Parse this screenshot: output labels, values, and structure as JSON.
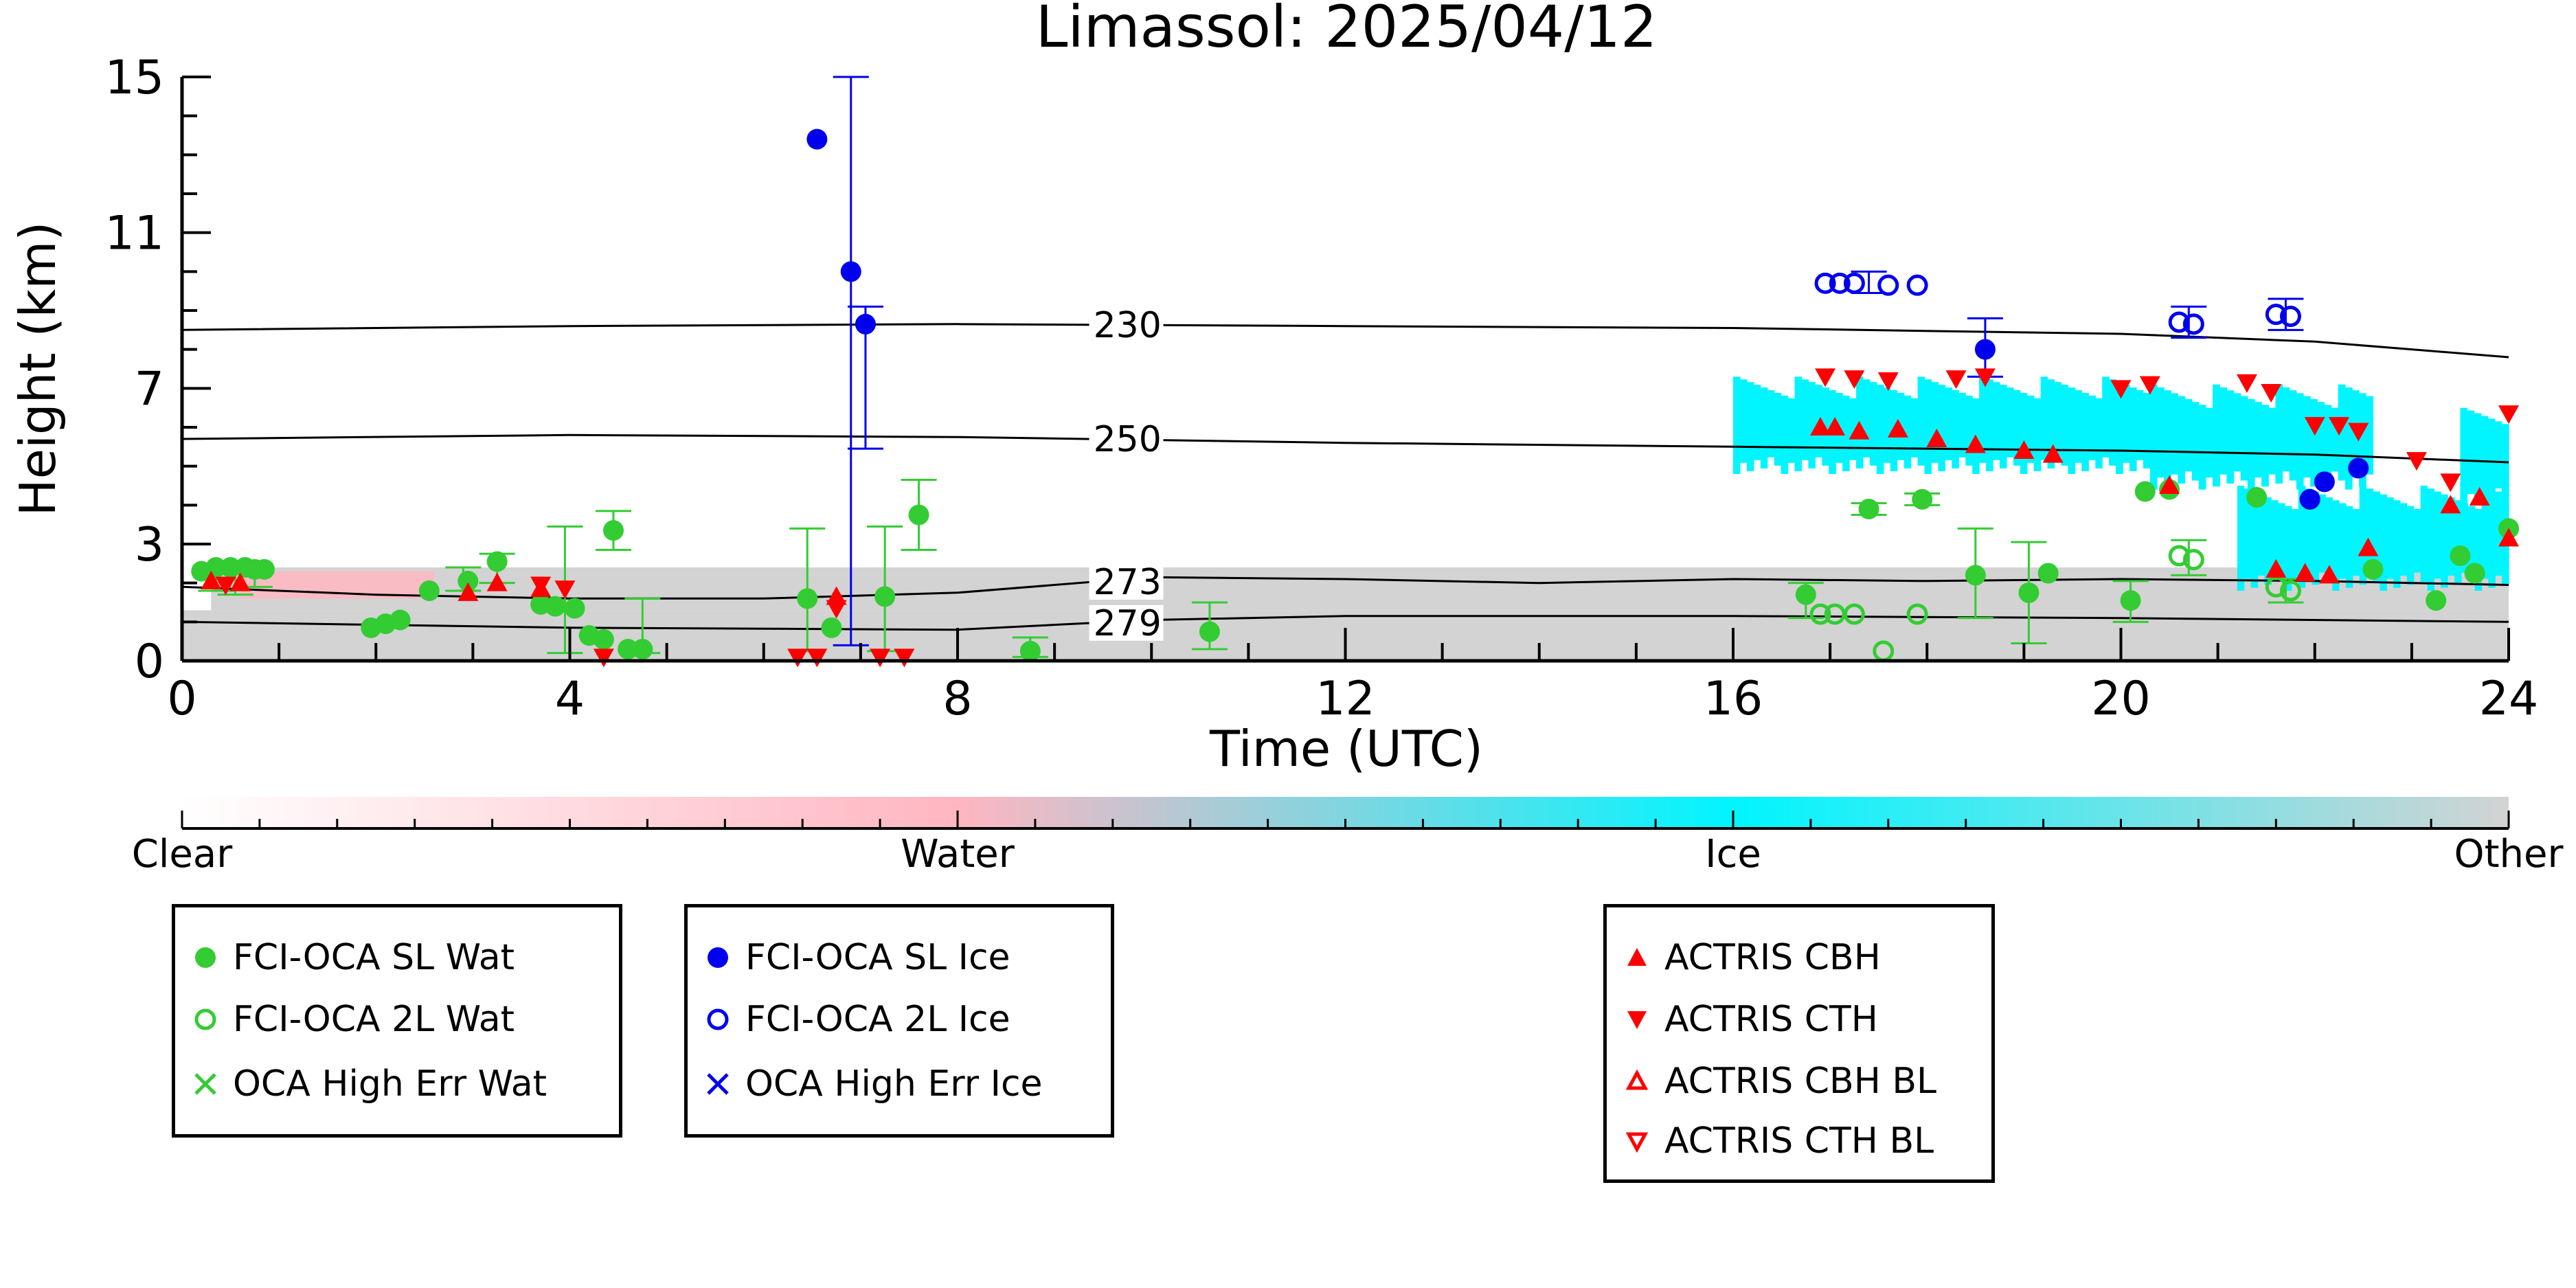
{
  "chart_data": {
    "type": "scatter",
    "title": "Limassol: 2025/04/12",
    "xlabel": "Time (UTC)",
    "ylabel": "Height (km)",
    "xlim": [
      0,
      24
    ],
    "ylim": [
      0,
      15
    ],
    "xticks": [
      "0",
      "4",
      "8",
      "12",
      "16",
      "20",
      "24"
    ],
    "yticks": [
      "0",
      "3",
      "7",
      "11",
      "15"
    ],
    "colors": {
      "water_green": "#33cc33",
      "ice_blue": "#0000ee",
      "actris_red": "#ff0000",
      "water_mask_pink": "#ffb6c1",
      "ice_mask_cyan": "#00f5ff",
      "other_mask_gray": "#d3d3d3"
    },
    "temperature_contours": [
      {
        "label": "230",
        "label_x": 9.4,
        "points": [
          [
            0,
            8.5
          ],
          [
            4,
            8.6
          ],
          [
            8,
            8.65
          ],
          [
            12,
            8.6
          ],
          [
            16,
            8.55
          ],
          [
            20,
            8.4
          ],
          [
            22,
            8.2
          ],
          [
            24,
            7.8
          ]
        ]
      },
      {
        "label": "250",
        "label_x": 9.4,
        "points": [
          [
            0,
            5.7
          ],
          [
            4,
            5.8
          ],
          [
            8,
            5.75
          ],
          [
            12,
            5.6
          ],
          [
            16,
            5.5
          ],
          [
            20,
            5.4
          ],
          [
            22,
            5.3
          ],
          [
            24,
            5.1
          ]
        ]
      },
      {
        "label": "273",
        "label_x": 9.4,
        "points": [
          [
            0,
            1.9
          ],
          [
            2,
            1.7
          ],
          [
            4,
            1.6
          ],
          [
            6,
            1.6
          ],
          [
            8,
            1.75
          ],
          [
            10,
            2.15
          ],
          [
            12,
            2.1
          ],
          [
            14,
            2.0
          ],
          [
            16,
            2.1
          ],
          [
            18,
            2.05
          ],
          [
            20,
            2.1
          ],
          [
            22,
            2.05
          ],
          [
            24,
            1.95
          ]
        ]
      },
      {
        "label": "279",
        "label_x": 9.4,
        "points": [
          [
            0,
            1.0
          ],
          [
            4,
            0.85
          ],
          [
            8,
            0.8
          ],
          [
            10,
            1.05
          ],
          [
            12,
            1.15
          ],
          [
            16,
            1.15
          ],
          [
            20,
            1.1
          ],
          [
            24,
            1.0
          ]
        ]
      }
    ],
    "cloud_mask_bands": [
      {
        "type": "other",
        "x0": 0.0,
        "x1": 24.0,
        "y0": 0.0,
        "y1": 1.3
      },
      {
        "type": "other",
        "x0": 0.3,
        "x1": 24.0,
        "y0": 1.3,
        "y1": 2.4
      },
      {
        "type": "water",
        "x0": 0.6,
        "x1": 2.6,
        "y0": 1.6,
        "y1": 2.3
      },
      {
        "type": "ice",
        "x0": 16.0,
        "x1": 20.3,
        "y0": 4.8,
        "y1": 7.3
      },
      {
        "type": "ice",
        "x0": 20.3,
        "x1": 22.6,
        "y0": 4.4,
        "y1": 7.1
      },
      {
        "type": "ice",
        "x0": 21.2,
        "x1": 24.0,
        "y0": 1.8,
        "y1": 4.5
      },
      {
        "type": "ice",
        "x0": 23.5,
        "x1": 24.0,
        "y0": 4.0,
        "y1": 6.5
      }
    ],
    "series": [
      {
        "name": "FCI-OCA SL Wat",
        "marker": "filled-circle",
        "color": "#33cc33",
        "points": [
          [
            0.2,
            2.3
          ],
          [
            0.35,
            2.4
          ],
          [
            0.5,
            2.4
          ],
          [
            0.65,
            2.4
          ],
          [
            0.75,
            2.35
          ],
          [
            0.85,
            2.35
          ],
          [
            1.95,
            0.85
          ],
          [
            2.1,
            0.95
          ],
          [
            2.25,
            1.05
          ],
          [
            2.55,
            1.8
          ],
          [
            2.95,
            2.05
          ],
          [
            3.25,
            2.55
          ],
          [
            3.7,
            1.45
          ],
          [
            3.85,
            1.4
          ],
          [
            4.05,
            1.35
          ],
          [
            4.2,
            0.65
          ],
          [
            4.35,
            0.55
          ],
          [
            4.45,
            3.35
          ],
          [
            4.6,
            0.3
          ],
          [
            4.75,
            0.3
          ],
          [
            6.45,
            1.6
          ],
          [
            6.7,
            0.85
          ],
          [
            7.25,
            1.65
          ],
          [
            7.6,
            3.75
          ],
          [
            8.75,
            0.25
          ],
          [
            10.6,
            0.75
          ],
          [
            16.75,
            1.7
          ],
          [
            17.4,
            3.9
          ],
          [
            17.95,
            4.15
          ],
          [
            18.5,
            2.2
          ],
          [
            19.05,
            1.75
          ],
          [
            19.25,
            2.25
          ],
          [
            20.1,
            1.55
          ],
          [
            20.25,
            4.35
          ],
          [
            20.5,
            4.4
          ],
          [
            21.4,
            4.2
          ],
          [
            22.6,
            2.35
          ],
          [
            23.25,
            1.55
          ],
          [
            23.5,
            2.7
          ],
          [
            23.65,
            2.25
          ],
          [
            24.0,
            3.4
          ]
        ]
      },
      {
        "name": "FCI-OCA 2L Wat",
        "marker": "open-circle",
        "color": "#33cc33",
        "points": [
          [
            16.9,
            1.2
          ],
          [
            17.05,
            1.2
          ],
          [
            17.25,
            1.2
          ],
          [
            17.55,
            0.25
          ],
          [
            17.9,
            1.2
          ],
          [
            20.6,
            2.7
          ],
          [
            20.75,
            2.6
          ],
          [
            21.6,
            1.9
          ],
          [
            21.75,
            1.8
          ]
        ]
      },
      {
        "name": "OCA High Err Wat",
        "marker": "x",
        "color": "#33cc33",
        "points": []
      },
      {
        "name": "FCI-OCA SL Ice",
        "marker": "filled-circle",
        "color": "#0000ee",
        "points": [
          [
            6.55,
            13.4
          ],
          [
            6.9,
            10.0
          ],
          [
            7.05,
            8.65
          ],
          [
            18.6,
            8.0
          ],
          [
            21.95,
            4.15
          ],
          [
            22.1,
            4.6
          ],
          [
            22.45,
            4.95
          ]
        ]
      },
      {
        "name": "FCI-OCA 2L Ice",
        "marker": "open-circle",
        "color": "#0000ee",
        "points": [
          [
            16.95,
            9.7
          ],
          [
            17.1,
            9.7
          ],
          [
            17.25,
            9.7
          ],
          [
            17.6,
            9.65
          ],
          [
            17.9,
            9.65
          ],
          [
            20.6,
            8.7
          ],
          [
            20.75,
            8.65
          ],
          [
            21.6,
            8.9
          ],
          [
            21.75,
            8.85
          ]
        ]
      },
      {
        "name": "OCA High Err Ice",
        "marker": "x",
        "color": "#0000ee",
        "points": []
      },
      {
        "name": "ACTRIS CBH",
        "marker": "triangle-up-filled",
        "color": "#ff0000",
        "points": [
          [
            0.3,
            2.05
          ],
          [
            0.6,
            2.0
          ],
          [
            2.95,
            1.75
          ],
          [
            3.25,
            2.0
          ],
          [
            3.7,
            1.85
          ],
          [
            6.75,
            1.65
          ],
          [
            16.9,
            6.0
          ],
          [
            17.05,
            6.0
          ],
          [
            17.3,
            5.9
          ],
          [
            17.7,
            5.95
          ],
          [
            18.1,
            5.7
          ],
          [
            18.5,
            5.55
          ],
          [
            19.0,
            5.4
          ],
          [
            19.3,
            5.3
          ],
          [
            20.5,
            4.5
          ],
          [
            21.6,
            2.35
          ],
          [
            21.9,
            2.25
          ],
          [
            22.15,
            2.2
          ],
          [
            22.55,
            2.9
          ],
          [
            23.4,
            4.0
          ],
          [
            23.7,
            4.2
          ],
          [
            24.0,
            3.15
          ]
        ]
      },
      {
        "name": "ACTRIS CTH",
        "marker": "triangle-down-filled",
        "color": "#ff0000",
        "points": [
          [
            0.45,
            1.95
          ],
          [
            3.7,
            1.95
          ],
          [
            3.95,
            1.85
          ],
          [
            4.35,
            0.1
          ],
          [
            6.35,
            0.1
          ],
          [
            6.55,
            0.1
          ],
          [
            6.75,
            1.35
          ],
          [
            7.2,
            0.1
          ],
          [
            7.45,
            0.1
          ],
          [
            16.95,
            7.3
          ],
          [
            17.25,
            7.25
          ],
          [
            17.6,
            7.2
          ],
          [
            18.3,
            7.25
          ],
          [
            18.6,
            7.3
          ],
          [
            20.0,
            7.0
          ],
          [
            20.3,
            7.1
          ],
          [
            21.3,
            7.15
          ],
          [
            21.55,
            6.9
          ],
          [
            22.0,
            6.05
          ],
          [
            22.25,
            6.05
          ],
          [
            22.45,
            5.9
          ],
          [
            23.05,
            5.15
          ],
          [
            23.4,
            4.6
          ],
          [
            24.0,
            6.35
          ]
        ]
      },
      {
        "name": "ACTRIS CBH BL",
        "marker": "triangle-up-open",
        "color": "#ff0000",
        "points": []
      },
      {
        "name": "ACTRIS CTH BL",
        "marker": "triangle-down-open",
        "color": "#ff0000",
        "points": []
      }
    ],
    "error_bars": [
      {
        "color": "#33cc33",
        "x": 0.35,
        "y0": 1.8,
        "y1": 2.5
      },
      {
        "color": "#33cc33",
        "x": 0.55,
        "y0": 1.7,
        "y1": 2.5
      },
      {
        "color": "#33cc33",
        "x": 0.75,
        "y0": 1.9,
        "y1": 2.5
      },
      {
        "color": "#33cc33",
        "x": 2.9,
        "y0": 1.8,
        "y1": 2.4
      },
      {
        "color": "#33cc33",
        "x": 3.25,
        "y0": 2.0,
        "y1": 2.75
      },
      {
        "color": "#33cc33",
        "x": 3.95,
        "y0": 0.2,
        "y1": 3.45
      },
      {
        "color": "#33cc33",
        "x": 4.45,
        "y0": 2.85,
        "y1": 3.85
      },
      {
        "color": "#33cc33",
        "x": 4.75,
        "y0": 0.2,
        "y1": 1.6
      },
      {
        "color": "#33cc33",
        "x": 6.45,
        "y0": 0.25,
        "y1": 3.4
      },
      {
        "color": "#33cc33",
        "x": 7.25,
        "y0": 0.25,
        "y1": 3.45
      },
      {
        "color": "#33cc33",
        "x": 7.6,
        "y0": 2.85,
        "y1": 4.65
      },
      {
        "color": "#33cc33",
        "x": 8.75,
        "y0": 0.1,
        "y1": 0.6
      },
      {
        "color": "#33cc33",
        "x": 10.6,
        "y0": 0.3,
        "y1": 1.5
      },
      {
        "color": "#33cc33",
        "x": 16.75,
        "y0": 1.1,
        "y1": 2.0
      },
      {
        "color": "#33cc33",
        "x": 17.4,
        "y0": 3.75,
        "y1": 4.05
      },
      {
        "color": "#33cc33",
        "x": 17.95,
        "y0": 4.0,
        "y1": 4.3
      },
      {
        "color": "#33cc33",
        "x": 18.5,
        "y0": 1.1,
        "y1": 3.4
      },
      {
        "color": "#33cc33",
        "x": 19.05,
        "y0": 0.45,
        "y1": 3.05
      },
      {
        "color": "#33cc33",
        "x": 20.1,
        "y0": 1.0,
        "y1": 2.05
      },
      {
        "color": "#33cc33",
        "x": 20.7,
        "y0": 2.2,
        "y1": 3.1
      },
      {
        "color": "#33cc33",
        "x": 21.7,
        "y0": 1.5,
        "y1": 2.1
      },
      {
        "color": "#0000ee",
        "x": 6.9,
        "y0": 0.4,
        "y1": 15.0
      },
      {
        "color": "#0000ee",
        "x": 7.05,
        "y0": 5.45,
        "y1": 9.1
      },
      {
        "color": "#0000ee",
        "x": 17.4,
        "y0": 9.45,
        "y1": 10.0
      },
      {
        "color": "#0000ee",
        "x": 18.6,
        "y0": 7.3,
        "y1": 8.8
      },
      {
        "color": "#0000ee",
        "x": 20.7,
        "y0": 8.3,
        "y1": 9.1
      },
      {
        "color": "#0000ee",
        "x": 21.7,
        "y0": 8.5,
        "y1": 9.3
      }
    ],
    "colorbar": {
      "labels": [
        "Clear",
        "Water",
        "Ice",
        "Other"
      ],
      "stops": [
        "#ffffff",
        "#ffb6c1",
        "#00f5ff",
        "#d3d3d3"
      ]
    },
    "legends": [
      {
        "items": [
          "FCI-OCA SL Wat",
          "FCI-OCA 2L Wat",
          "OCA High Err Wat"
        ]
      },
      {
        "items": [
          "FCI-OCA SL Ice",
          "FCI-OCA 2L Ice",
          "OCA High Err Ice"
        ]
      },
      {
        "items": [
          "ACTRIS CBH",
          "ACTRIS CTH",
          "ACTRIS CBH BL",
          "ACTRIS CTH BL"
        ]
      }
    ]
  }
}
